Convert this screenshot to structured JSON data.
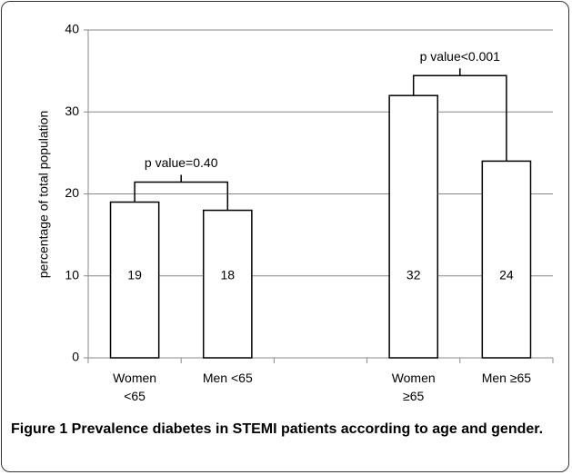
{
  "chart_data": {
    "type": "bar",
    "y_label": "percentage of total population",
    "categories": [
      "Women <65",
      "Men <65",
      null,
      "Women ≥65",
      "Men ≥65"
    ],
    "values": [
      19,
      18,
      null,
      32,
      24
    ],
    "color": "#ffffff",
    "ylim": [
      0,
      40
    ],
    "yticks": [
      0,
      10,
      20,
      30,
      40
    ],
    "grid": true,
    "annotations": [
      "p value=0.40",
      "p value<0.001"
    ],
    "caption": "Figure 1 Prevalence diabetes in STEMI patients according to age and gender."
  }
}
